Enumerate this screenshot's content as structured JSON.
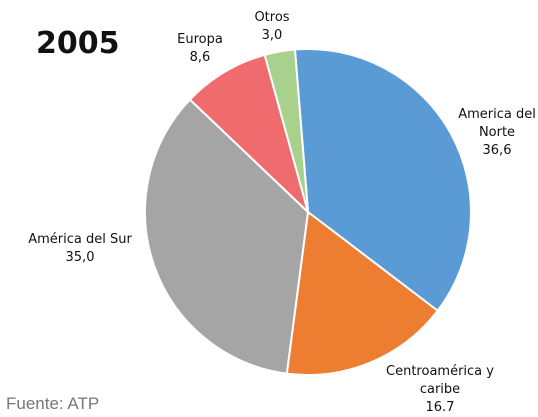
{
  "chart_data": {
    "type": "pie",
    "title": "2005",
    "categories": [
      "America del Norte",
      "Centroamérica y caribe",
      "América del Sur",
      "Europa",
      "Otros"
    ],
    "values": [
      36.6,
      16.7,
      35.0,
      8.6,
      3.0
    ],
    "value_labels": [
      "36,6",
      "16.7",
      "35,0",
      "8,6",
      "3,0"
    ],
    "colors": [
      "#5b9bd5",
      "#ed7d31",
      "#a5a5a5",
      "#f06b6d",
      "#a9d18e"
    ],
    "source": "Fuente: ATP"
  }
}
